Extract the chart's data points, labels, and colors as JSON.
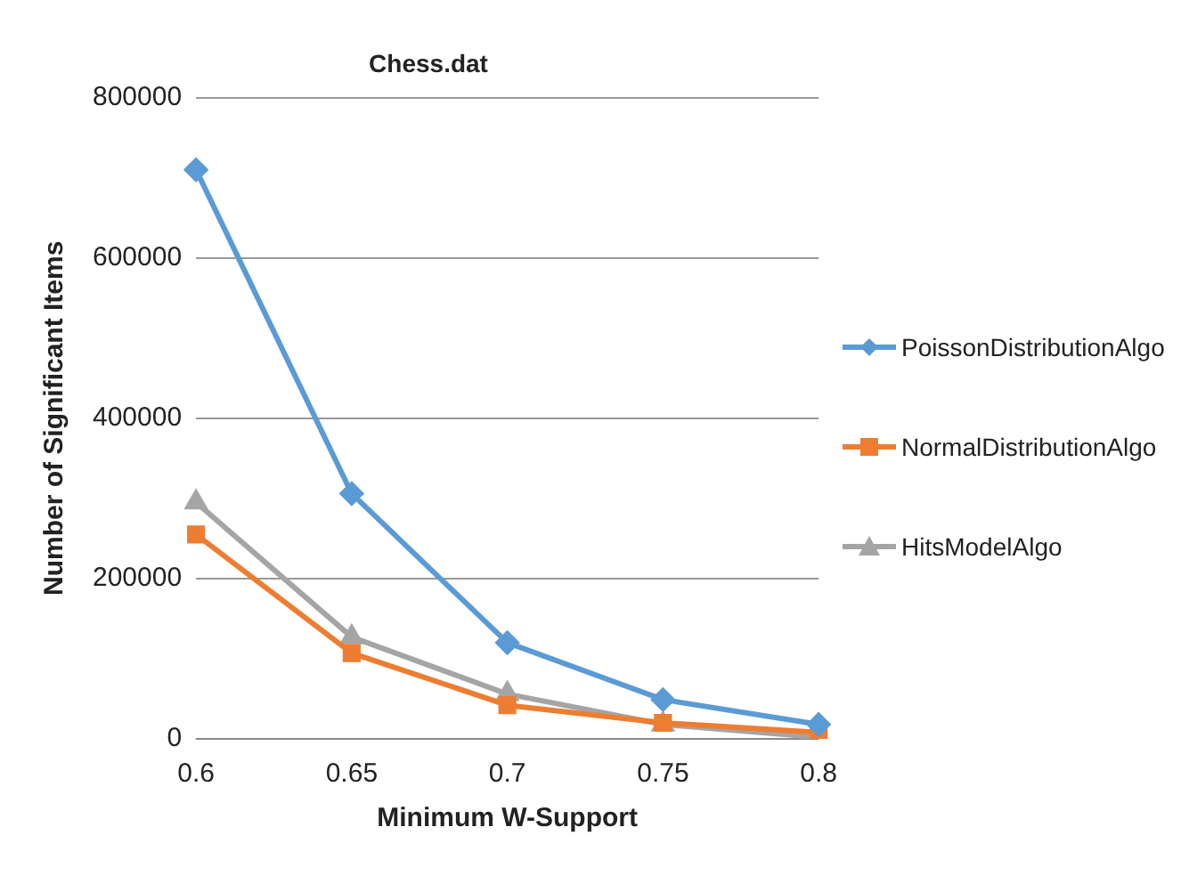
{
  "chart_data": {
    "type": "line",
    "title": "Chess.dat",
    "xlabel": "Minimum W-Support",
    "ylabel": "Number of Significant Items",
    "categories": [
      "0.6",
      "0.65",
      "0.7",
      "0.75",
      "0.8"
    ],
    "series": [
      {
        "name": "PoissonDistributionAlgo",
        "color": "#5b9bd5",
        "marker": "diamond",
        "values": [
          710000,
          306000,
          120000,
          49000,
          18000
        ]
      },
      {
        "name": "NormalDistributionAlgo",
        "color": "#ed7d31",
        "marker": "square",
        "values": [
          255000,
          107000,
          42000,
          20000,
          8000
        ]
      },
      {
        "name": "HitsModelAlgo",
        "color": "#a5a5a5",
        "marker": "triangle",
        "values": [
          295000,
          127000,
          56000,
          18000,
          2000
        ]
      }
    ],
    "ylim": [
      0,
      800000
    ],
    "yticks": [
      0,
      200000,
      400000,
      600000,
      800000
    ],
    "grid": "y",
    "legend": "right"
  }
}
